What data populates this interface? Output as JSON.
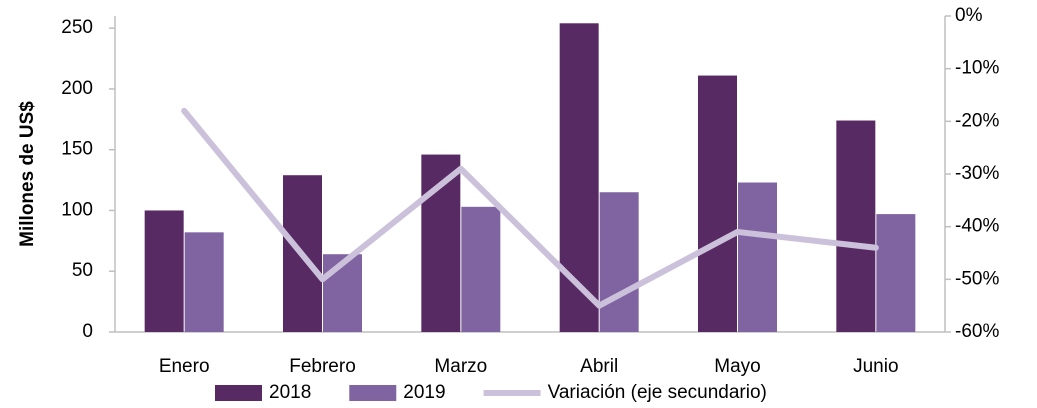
{
  "chart_data": {
    "type": "bar",
    "y_label": "Millones de US$",
    "categories": [
      "Enero",
      "Febrero",
      "Marzo",
      "Abril",
      "Mayo",
      "Junio"
    ],
    "series": [
      {
        "name": "2018",
        "color": "#582a63",
        "values": [
          100,
          129,
          146,
          254,
          211,
          174
        ]
      },
      {
        "name": "2019",
        "color": "#8064a2",
        "values": [
          82,
          64,
          103,
          115,
          123,
          97
        ]
      },
      {
        "name": "Variación (eje secundario)",
        "color": "#ccc1da",
        "type": "line",
        "axis": "y2",
        "values": [
          -18,
          -50,
          -29,
          -55,
          -41,
          -44
        ]
      }
    ],
    "ylim": [
      0,
      260
    ],
    "yticks": [
      0,
      50,
      100,
      150,
      200,
      250
    ],
    "y2lim": [
      -60,
      0
    ],
    "y2ticks": [
      {
        "value": 0,
        "label": "0%"
      },
      {
        "value": -10,
        "label": "-10%"
      },
      {
        "value": -20,
        "label": "-20%"
      },
      {
        "value": -30,
        "label": "-30%"
      },
      {
        "value": -40,
        "label": "-40%"
      },
      {
        "value": -50,
        "label": "-50%"
      },
      {
        "value": -60,
        "label": "-60%"
      }
    ],
    "legend": "bottom"
  }
}
